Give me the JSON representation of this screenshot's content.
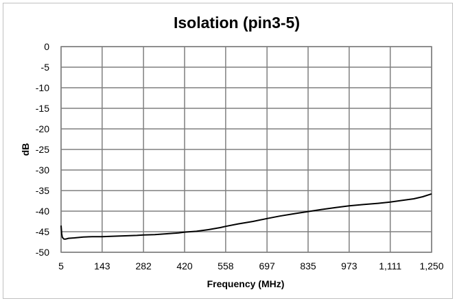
{
  "chart_data": {
    "type": "line",
    "title": "Isolation (pin3-5)",
    "xlabel": "Frequency (MHz)",
    "ylabel": "dB",
    "xlim": [
      5,
      1250
    ],
    "ylim": [
      -50,
      0
    ],
    "x_ticks": [
      5,
      143,
      282,
      420,
      558,
      697,
      835,
      973,
      1111,
      1250
    ],
    "x_tick_labels": [
      "5",
      "143",
      "282",
      "420",
      "558",
      "697",
      "835",
      "973",
      "1,111",
      "1,250"
    ],
    "y_ticks": [
      0,
      -5,
      -10,
      -15,
      -20,
      -25,
      -30,
      -35,
      -40,
      -45,
      -50
    ],
    "y_tick_labels": [
      "0",
      "-5",
      "-10",
      "-15",
      "-20",
      "-25",
      "-30",
      "-35",
      "-40",
      "-45",
      "-50"
    ],
    "grid": true,
    "legend": "none",
    "series": [
      {
        "color": "#000000",
        "x": [
          5,
          7,
          9,
          12,
          15,
          20,
          30,
          50,
          80,
          110,
          143,
          180,
          220,
          260,
          282,
          320,
          360,
          400,
          420,
          460,
          500,
          540,
          558,
          600,
          650,
          697,
          740,
          790,
          835,
          880,
          930,
          973,
          1020,
          1070,
          1111,
          1150,
          1190,
          1220,
          1250
        ],
        "y": [
          -43.5,
          -45.5,
          -46.3,
          -46.6,
          -46.8,
          -46.8,
          -46.6,
          -46.5,
          -46.3,
          -46.2,
          -46.2,
          -46.1,
          -46.0,
          -45.9,
          -45.8,
          -45.7,
          -45.5,
          -45.3,
          -45.1,
          -44.9,
          -44.5,
          -44.0,
          -43.7,
          -43.1,
          -42.5,
          -41.8,
          -41.2,
          -40.6,
          -40.1,
          -39.6,
          -39.1,
          -38.7,
          -38.4,
          -38.1,
          -37.8,
          -37.4,
          -37.0,
          -36.5,
          -35.8
        ]
      }
    ]
  }
}
